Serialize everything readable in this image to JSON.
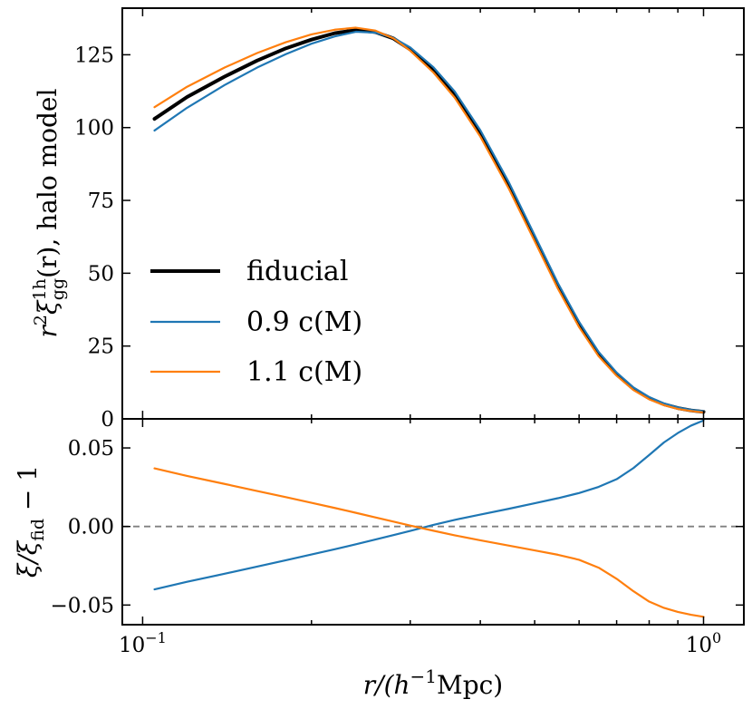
{
  "chart_data": [
    {
      "type": "line",
      "panel": "top",
      "ylabel": "r²ξ_gg^1h(r), halo model",
      "ylabel_parts": {
        "base": "r",
        "sup1": "2",
        "xi": "ξ",
        "sub": "gg",
        "sup2": "1h",
        "rest": "(r), halo model"
      },
      "xscale": "log",
      "xlim": [
        0.092,
        1.18
      ],
      "ylim": [
        0,
        141
      ],
      "yticks": [
        0,
        25,
        50,
        75,
        100,
        125
      ],
      "ytick_labels": [
        "0",
        "25",
        "50",
        "75",
        "100",
        "125"
      ],
      "legend_position": "center-left",
      "x": [
        0.105,
        0.12,
        0.14,
        0.16,
        0.18,
        0.2,
        0.22,
        0.24,
        0.26,
        0.28,
        0.3,
        0.33,
        0.36,
        0.4,
        0.45,
        0.5,
        0.55,
        0.6,
        0.65,
        0.7,
        0.75,
        0.8,
        0.85,
        0.9,
        0.95,
        1.0
      ],
      "series": [
        {
          "name": "fiducial",
          "color": "#000000",
          "values": [
            103,
            110.5,
            117.5,
            123,
            127.2,
            130.2,
            132.4,
            133.5,
            132.8,
            130.6,
            126.8,
            119.8,
            111.4,
            98,
            80,
            62,
            45.6,
            32.3,
            22.2,
            15.3,
            10.3,
            7.1,
            5,
            3.7,
            2.9,
            2.4
          ]
        },
        {
          "name": "0.9 c(M)",
          "color": "#1f77b4",
          "values": [
            99,
            106.8,
            114.6,
            120.6,
            125.2,
            128.8,
            131.3,
            132.9,
            132.6,
            130.8,
            127.5,
            120.7,
            112.4,
            99.1,
            81.1,
            63,
            46.6,
            33.3,
            23,
            15.9,
            10.8,
            7.5,
            5.3,
            3.9,
            3.1,
            2.6
          ]
        },
        {
          "name": "1.1 c(M)",
          "color": "#ff7f0e",
          "values": [
            107,
            114,
            120.6,
            125.6,
            129.3,
            132,
            133.6,
            134.3,
            133.3,
            130.6,
            126.4,
            118.9,
            110.3,
            96.9,
            78.9,
            61,
            44.7,
            31.5,
            21.5,
            14.8,
            9.9,
            6.7,
            4.7,
            3.4,
            2.7,
            2.2
          ]
        }
      ]
    },
    {
      "type": "line",
      "panel": "bottom",
      "xlabel": "r/(h⁻¹Mpc)",
      "xlabel_parts": {
        "pre": "r/(h",
        "sup": "−1",
        "post": "Mpc)"
      },
      "ylabel": "ξ/ξ_fid − 1",
      "ylabel_parts": {
        "xi": "ξ/ξ",
        "sub": "fid",
        "rest": " − 1"
      },
      "xscale": "log",
      "xlim": [
        0.092,
        1.18
      ],
      "ylim": [
        -0.0625,
        0.0685
      ],
      "yticks": [
        -0.05,
        0.0,
        0.05
      ],
      "ytick_labels": [
        "−0.05",
        "0.00",
        "0.05"
      ],
      "xticks": [
        0.1,
        1.0
      ],
      "xtick_labels": [
        {
          "base": "10",
          "exp": "−1"
        },
        {
          "base": "10",
          "exp": "0"
        }
      ],
      "reference_line": {
        "y": 0.0,
        "style": "dashed",
        "color": "#808080"
      },
      "x": [
        0.105,
        0.12,
        0.14,
        0.16,
        0.18,
        0.2,
        0.22,
        0.24,
        0.26,
        0.28,
        0.3,
        0.33,
        0.36,
        0.4,
        0.45,
        0.5,
        0.55,
        0.6,
        0.65,
        0.7,
        0.75,
        0.8,
        0.85,
        0.9,
        0.95,
        1.0
      ],
      "series": [
        {
          "name": "0.9 c(M)",
          "color": "#1f77b4",
          "values": [
            -0.04,
            -0.0352,
            -0.0301,
            -0.0255,
            -0.0215,
            -0.0178,
            -0.0145,
            -0.0113,
            -0.0083,
            -0.0055,
            -0.0028,
            0.001,
            0.0042,
            0.0076,
            0.0113,
            0.0148,
            0.018,
            0.0213,
            0.0252,
            0.0301,
            0.0372,
            0.0455,
            0.0535,
            0.0595,
            0.0642,
            0.0675
          ]
        },
        {
          "name": "1.1 c(M)",
          "color": "#ff7f0e",
          "values": [
            0.037,
            0.0322,
            0.0271,
            0.0226,
            0.0187,
            0.0151,
            0.0118,
            0.0087,
            0.0058,
            0.0031,
            0.0006,
            -0.0027,
            -0.0056,
            -0.0088,
            -0.0122,
            -0.0152,
            -0.018,
            -0.0212,
            -0.0262,
            -0.0333,
            -0.0412,
            -0.0478,
            -0.0518,
            -0.0544,
            -0.0562,
            -0.0575
          ]
        }
      ]
    }
  ]
}
